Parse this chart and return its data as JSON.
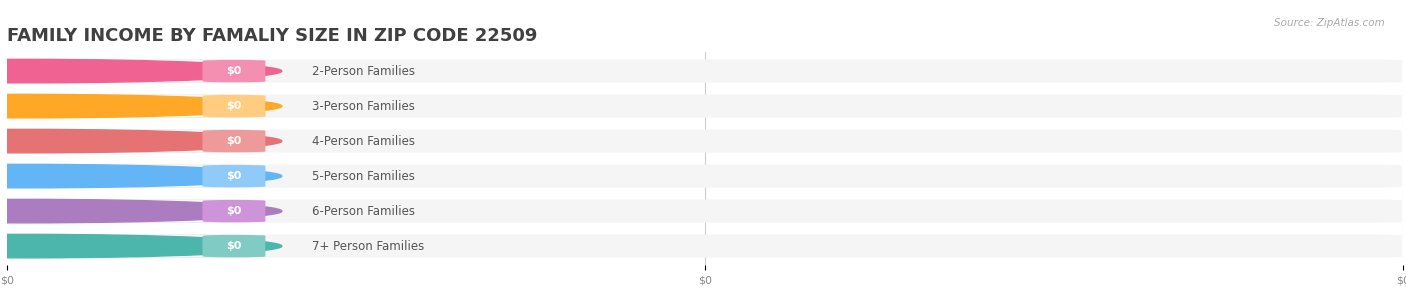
{
  "title": "FAMILY INCOME BY FAMALIY SIZE IN ZIP CODE 22509",
  "source": "Source: ZipAtlas.com",
  "categories": [
    "2-Person Families",
    "3-Person Families",
    "4-Person Families",
    "5-Person Families",
    "6-Person Families",
    "7+ Person Families"
  ],
  "values": [
    0,
    0,
    0,
    0,
    0,
    0
  ],
  "bar_colors": [
    "#f48fb1",
    "#ffcc80",
    "#ef9a9a",
    "#90caf9",
    "#ce93d8",
    "#80cbc4"
  ],
  "circle_colors": [
    "#f06292",
    "#ffa726",
    "#e57373",
    "#64b5f6",
    "#ab7dc0",
    "#4db6ac"
  ],
  "background_color": "#ffffff",
  "row_bg_color": "#f5f5f5",
  "bar_white_color": "#ffffff",
  "title_color": "#404040",
  "label_color": "#555555",
  "value_color": "#ffffff",
  "source_color": "#aaaaaa",
  "xlim_max": 1.0,
  "title_fontsize": 13,
  "label_fontsize": 8.5,
  "value_fontsize": 8,
  "source_fontsize": 7.5,
  "xtick_labels": [
    "$0",
    "$0",
    "$0"
  ],
  "xtick_positions": [
    0.0,
    0.5,
    1.0
  ]
}
